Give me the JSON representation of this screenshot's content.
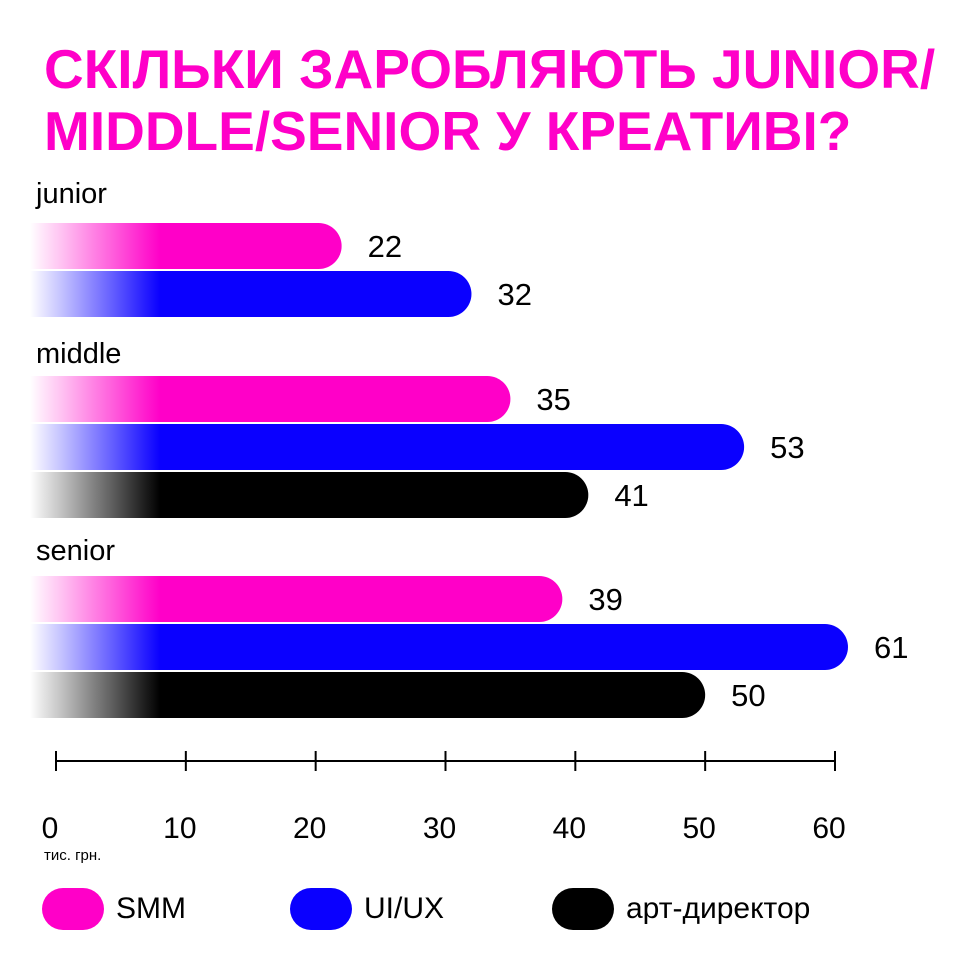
{
  "title_lines": [
    "СКІЛЬКИ ЗАРОБЛЯЮТЬ JUNIOR/",
    "MIDDLE/SENIOR У КРЕАТИВІ?"
  ],
  "chart_data": {
    "type": "bar",
    "orientation": "horizontal",
    "title": "СКІЛЬКИ ЗАРОБЛЯЮТЬ JUNIOR/MIDDLE/SENIOR У КРЕАТИВІ?",
    "unit_label": "тис. грн.",
    "xlim": [
      0,
      60
    ],
    "x_ticks": [
      0,
      10,
      20,
      30,
      40,
      50,
      60
    ],
    "groups": [
      {
        "label": "junior",
        "bars": [
          {
            "series": "SMM",
            "value": 22
          },
          {
            "series": "UI/UX",
            "value": 32
          }
        ]
      },
      {
        "label": "middle",
        "bars": [
          {
            "series": "SMM",
            "value": 35
          },
          {
            "series": "UI/UX",
            "value": 53
          },
          {
            "series": "арт-директор",
            "value": 41
          }
        ]
      },
      {
        "label": "senior",
        "bars": [
          {
            "series": "SMM",
            "value": 39
          },
          {
            "series": "UI/UX",
            "value": 61
          },
          {
            "series": "арт-директор",
            "value": 50
          }
        ]
      }
    ],
    "series": [
      {
        "name": "SMM",
        "color": "#ff00c8"
      },
      {
        "name": "UI/UX",
        "color": "#0a00ff"
      },
      {
        "name": "арт-директор",
        "color": "#000000"
      }
    ],
    "legend_position": "bottom",
    "grid": false
  }
}
